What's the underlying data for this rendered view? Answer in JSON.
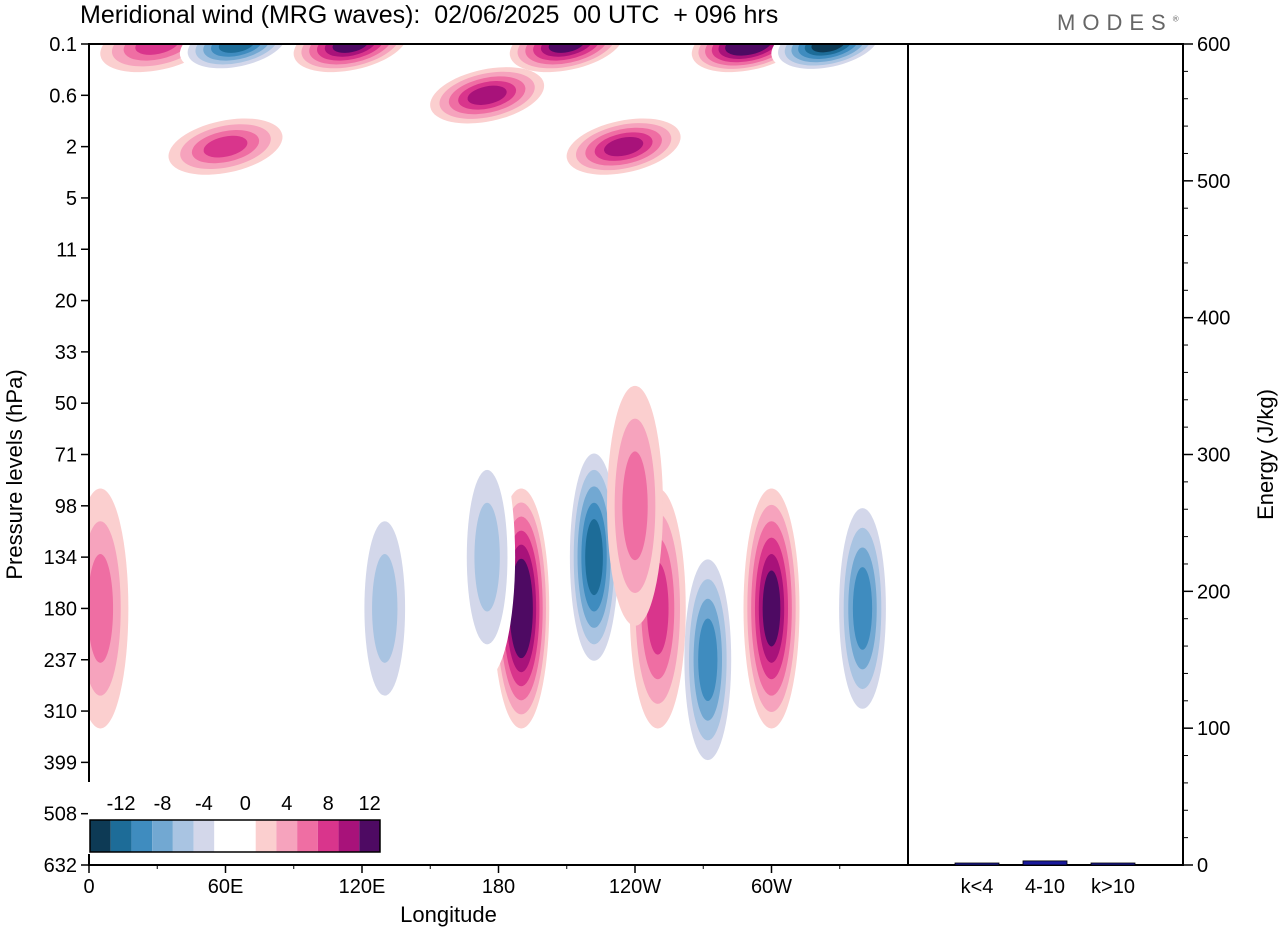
{
  "header": {
    "title": "Meridional wind (MRG waves):  02/06/2025  00 UTC  + 096 hrs",
    "logo": "MODES"
  },
  "chart_data": [
    {
      "type": "heatmap",
      "xlabel": "Longitude",
      "ylabel": "Pressure levels (hPa)",
      "x_ticks": [
        "0",
        "60E",
        "120E",
        "180",
        "120W",
        "60W"
      ],
      "x_tick_values": [
        0,
        60,
        120,
        180,
        240,
        300
      ],
      "xlim": [
        0,
        360
      ],
      "y_ticks": [
        "0.1",
        "0.6",
        "2",
        "5",
        "11",
        "20",
        "33",
        "50",
        "71",
        "98",
        "134",
        "180",
        "237",
        "310",
        "399",
        "508",
        "632"
      ],
      "colorbar": {
        "labels": [
          "-12",
          "-8",
          "-4",
          "0",
          "4",
          "8",
          "12"
        ],
        "colors": [
          "#0d3a55",
          "#1d6c98",
          "#3f8cbf",
          "#72a8d2",
          "#a9c4e2",
          "#d3d7ea",
          "#ffffff",
          "#ffffff",
          "#fbcfcf",
          "#f6a3bd",
          "#ef6ea3",
          "#d9358c",
          "#a8127a",
          "#4e0a63"
        ]
      },
      "features": [
        {
          "lon": 190,
          "level": "180",
          "value": 14
        },
        {
          "lon": 222,
          "level": "134",
          "value": -12
        },
        {
          "lon": 300,
          "level": "180",
          "value": 12
        },
        {
          "lon": 272,
          "level": "237",
          "value": -10
        },
        {
          "lon": 340,
          "level": "180",
          "value": -10
        },
        {
          "lon": 175,
          "level": "134",
          "value": -7
        },
        {
          "lon": 250,
          "level": "180",
          "value": 9
        },
        {
          "lon": 240,
          "level": "98",
          "value": 7
        },
        {
          "lon": 5,
          "level": "180",
          "value": 7
        },
        {
          "lon": 130,
          "level": "180",
          "value": -6
        },
        {
          "lon": 30,
          "level": "0.1",
          "value": 9
        },
        {
          "lon": 65,
          "level": "0.1",
          "value": -12
        },
        {
          "lon": 115,
          "level": "0.1",
          "value": 13
        },
        {
          "lon": 210,
          "level": "0.1",
          "value": 12
        },
        {
          "lon": 290,
          "level": "0.1",
          "value": 14
        },
        {
          "lon": 325,
          "level": "0.1",
          "value": -14
        },
        {
          "lon": 60,
          "level": "2",
          "value": 9
        },
        {
          "lon": 175,
          "level": "0.6",
          "value": 11
        },
        {
          "lon": 235,
          "level": "2",
          "value": 10
        }
      ]
    },
    {
      "type": "bar",
      "categories": [
        "k<4",
        "4-10",
        "k>10"
      ],
      "values": [
        0.5,
        3,
        0.5
      ],
      "ylabel": "Energy (J/kg)",
      "ylim": [
        0,
        600
      ],
      "y_ticks": [
        "0",
        "100",
        "200",
        "300",
        "400",
        "500",
        "600"
      ],
      "bar_color": "#1a1a9c"
    }
  ]
}
